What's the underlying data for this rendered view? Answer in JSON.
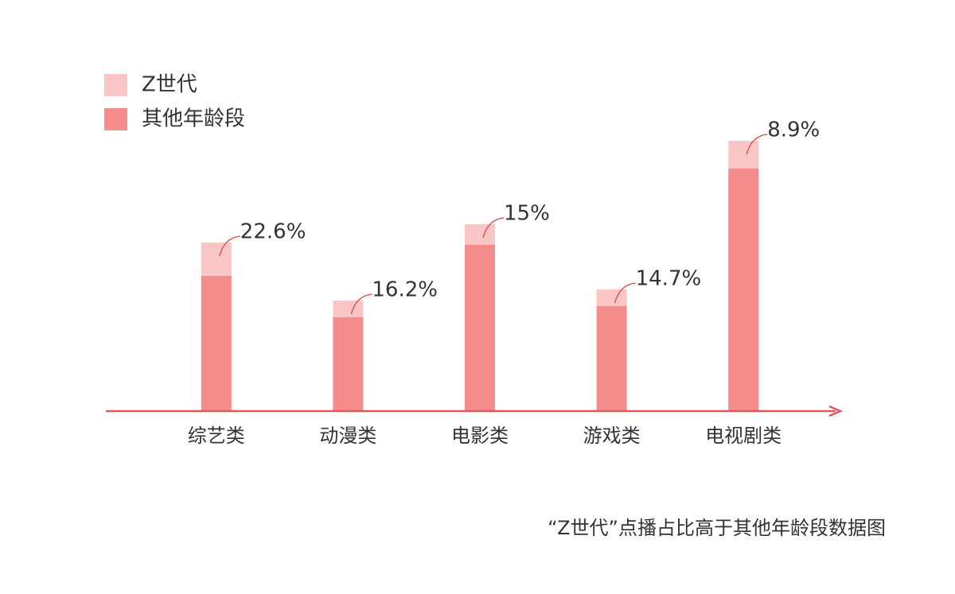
{
  "chart_data": {
    "type": "stacked_bar",
    "caption": "“Z世代”点播占比高于其他年龄段数据图",
    "categories": [
      "综艺类",
      "动漫类",
      "电影类",
      "游戏类",
      "电视剧类"
    ],
    "series": [
      {
        "name": "其他年龄段",
        "color": "#f48c8c",
        "values": [
          170,
          118,
          209,
          132,
          305
        ]
      },
      {
        "name": "Z世代",
        "color": "#f9c5c5",
        "values": [
          42,
          21,
          26,
          21,
          35
        ]
      }
    ],
    "annotations": [
      "22.6%",
      "16.2%",
      "15%",
      "14.7%",
      "8.9%"
    ],
    "ylim": [
      0,
      350
    ],
    "axis_color": "#e0575b"
  }
}
